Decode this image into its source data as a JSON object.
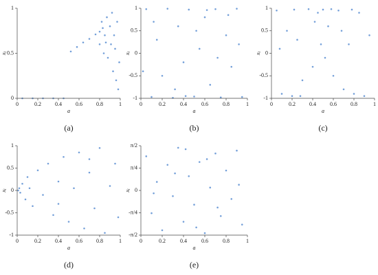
{
  "chart_data": [
    {
      "type": "scatter",
      "panel_label": "(a)",
      "x_label": "a",
      "y_label": "x",
      "y_label_sub": "i",
      "color": "#3a78c9",
      "xlim": [
        0,
        1
      ],
      "ylim": [
        0,
        1
      ],
      "xticks": [
        0,
        0.2,
        0.4,
        0.6,
        0.8,
        1
      ],
      "yticks": [
        0,
        0.5,
        1
      ],
      "x": [
        0.05,
        0.15,
        0.25,
        0.35,
        0.45,
        0.52,
        0.58,
        0.64,
        0.7,
        0.76,
        0.8,
        0.8,
        0.82,
        0.84,
        0.85,
        0.87,
        0.88,
        0.9,
        0.91,
        0.92,
        0.93,
        0.94,
        0.95,
        0.96,
        0.97,
        0.98,
        0.99,
        0.83,
        0.86
      ],
      "y": [
        0,
        0,
        0,
        0,
        0,
        0.52,
        0.57,
        0.62,
        0.66,
        0.71,
        0.74,
        0.6,
        0.85,
        0.5,
        0.7,
        0.9,
        0.45,
        0.8,
        0.6,
        0.95,
        0.3,
        0.7,
        0.55,
        0.2,
        0.85,
        0.1,
        0.4,
        0.78,
        0.62
      ]
    },
    {
      "type": "scatter",
      "panel_label": "(b)",
      "x_label": "a",
      "y_label": "x",
      "y_label_sub": "i",
      "color": "#3a78c9",
      "xlim": [
        0,
        1
      ],
      "ylim": [
        -1,
        1
      ],
      "xticks": [
        0,
        0.2,
        0.4,
        0.6,
        0.8,
        1
      ],
      "yticks": [
        -1,
        -0.5,
        0,
        0.5,
        1
      ],
      "x": [
        0.05,
        0.1,
        0.15,
        0.2,
        0.25,
        0.3,
        0.35,
        0.4,
        0.45,
        0.5,
        0.55,
        0.6,
        0.65,
        0.7,
        0.75,
        0.8,
        0.85,
        0.9,
        0.95,
        0.12,
        0.32,
        0.52,
        0.72,
        0.92,
        0.02,
        0.62,
        0.42,
        0.82
      ],
      "y": [
        0.98,
        -0.97,
        0.3,
        -0.5,
        0.99,
        -0.99,
        0.6,
        -0.2,
        0.97,
        -0.96,
        0.1,
        0.8,
        -0.7,
        0.98,
        -0.98,
        0.4,
        -0.3,
        0.99,
        -0.97,
        0.7,
        -0.8,
        0.5,
        -0.1,
        0.2,
        -0.4,
        0.96,
        -0.95,
        0.85
      ]
    },
    {
      "type": "scatter",
      "panel_label": "(c)",
      "x_label": "a",
      "y_label": "x",
      "y_label_sub": "i",
      "color": "#3a78c9",
      "xlim": [
        0,
        1
      ],
      "ylim": [
        -1,
        1
      ],
      "xticks": [
        0,
        0.2,
        0.4,
        0.6,
        0.8,
        1
      ],
      "yticks": [
        -1,
        -0.5,
        0,
        0.5,
        1
      ],
      "x": [
        0.05,
        0.1,
        0.15,
        0.2,
        0.25,
        0.3,
        0.36,
        0.4,
        0.45,
        0.5,
        0.55,
        0.6,
        0.65,
        0.7,
        0.75,
        0.8,
        0.85,
        0.9,
        0.95,
        0.22,
        0.48,
        0.52,
        0.58,
        0.68,
        0.78,
        0.08,
        0.28,
        0.42
      ],
      "y": [
        0.95,
        -0.9,
        0.5,
        -0.95,
        0.3,
        -0.6,
        0.98,
        -0.3,
        0.9,
        0.97,
        0.6,
        -0.5,
        0.95,
        -0.8,
        0.2,
        -0.9,
        0.9,
        -0.95,
        0.4,
        0.97,
        0.2,
        -0.1,
        0.98,
        0.5,
        0.97,
        0.1,
        -0.95,
        0.7
      ]
    },
    {
      "type": "scatter",
      "panel_label": "(d)",
      "x_label": "a",
      "y_label": "x",
      "y_label_sub": "i",
      "color": "#3a78c9",
      "xlim": [
        0,
        1
      ],
      "ylim": [
        -1,
        1
      ],
      "xticks": [
        0,
        0.2,
        0.4,
        0.6,
        0.8,
        1
      ],
      "yticks": [
        -1,
        -0.5,
        0,
        0.5,
        1
      ],
      "x": [
        0.01,
        0.02,
        0.03,
        0.05,
        0.08,
        0.1,
        0.15,
        0.2,
        0.25,
        0.3,
        0.35,
        0.4,
        0.45,
        0.5,
        0.55,
        0.6,
        0.65,
        0.7,
        0.75,
        0.8,
        0.85,
        0.9,
        0.95,
        0.98,
        0.12,
        0.4,
        0.7
      ],
      "y": [
        0,
        0.05,
        -0.05,
        0.15,
        -0.2,
        0.3,
        -0.35,
        0.45,
        -0.1,
        0.6,
        -0.55,
        0.2,
        0.75,
        -0.7,
        0.05,
        0.85,
        -0.85,
        0.4,
        -0.4,
        0.95,
        -0.95,
        0.1,
        0.6,
        -0.6,
        0.05,
        -0.3,
        0.7
      ]
    },
    {
      "type": "scatter",
      "panel_label": "(e)",
      "x_label": "a",
      "y_label": "x",
      "y_label_sub": "i",
      "color": "#3a78c9",
      "xlim": [
        0,
        1
      ],
      "ylim": [
        -1.5708,
        1.5708
      ],
      "xticks": [
        0,
        0.2,
        0.4,
        0.6,
        0.8,
        1
      ],
      "yticks": [
        {
          "value": -1.5708,
          "label": "-π/2"
        },
        {
          "value": -0.7854,
          "label": "-π/4"
        },
        0,
        {
          "value": 0.7854,
          "label": "π/4"
        },
        {
          "value": 1.5708,
          "label": "π/2"
        }
      ],
      "x": [
        0.05,
        0.1,
        0.15,
        0.2,
        0.25,
        0.3,
        0.35,
        0.4,
        0.45,
        0.5,
        0.55,
        0.6,
        0.65,
        0.7,
        0.75,
        0.8,
        0.85,
        0.9,
        0.95,
        0.12,
        0.32,
        0.52,
        0.72,
        0.92,
        0.62,
        0.42
      ],
      "y": [
        1.2,
        -0.8,
        0.3,
        -1.4,
        0.9,
        -0.2,
        1.5,
        -1.1,
        0.5,
        -0.5,
        1.0,
        -1.5,
        0.1,
        1.3,
        -0.9,
        0.7,
        -0.3,
        1.4,
        -1.2,
        -0.1,
        0.6,
        -1.3,
        -0.6,
        0.2,
        1.1,
        1.45
      ]
    }
  ]
}
